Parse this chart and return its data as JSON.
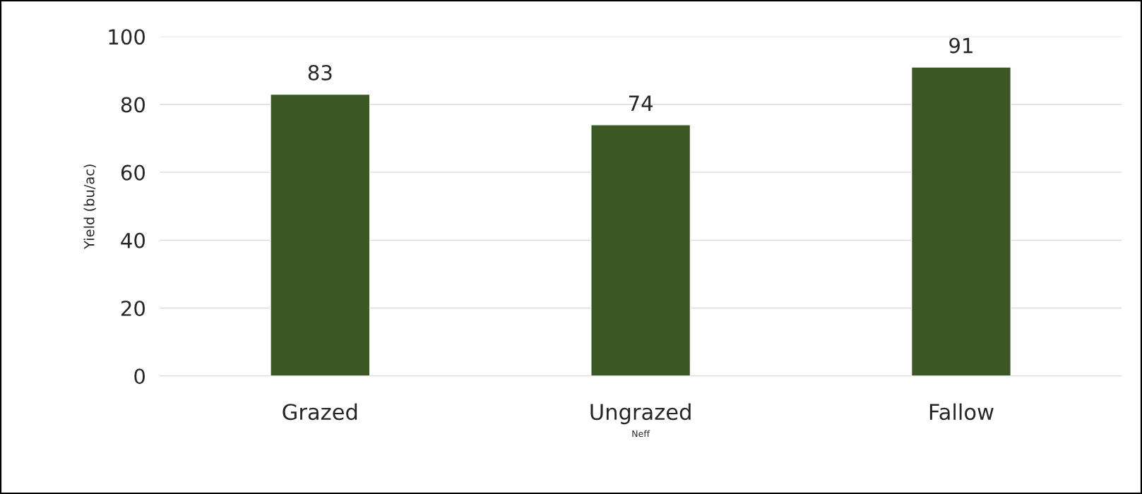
{
  "chart_data": {
    "type": "bar",
    "xlabel": "Neff",
    "ylabel": "Yield (bu/ac)",
    "categories": [
      "Grazed",
      "Ungrazed",
      "Fallow"
    ],
    "values": [
      83,
      74,
      91
    ],
    "color": "#3a5724",
    "data_labels": true,
    "ylim": [
      0,
      100
    ],
    "yticks": [
      0,
      20,
      40,
      60,
      80,
      100
    ],
    "grid": "y",
    "legend": false
  }
}
